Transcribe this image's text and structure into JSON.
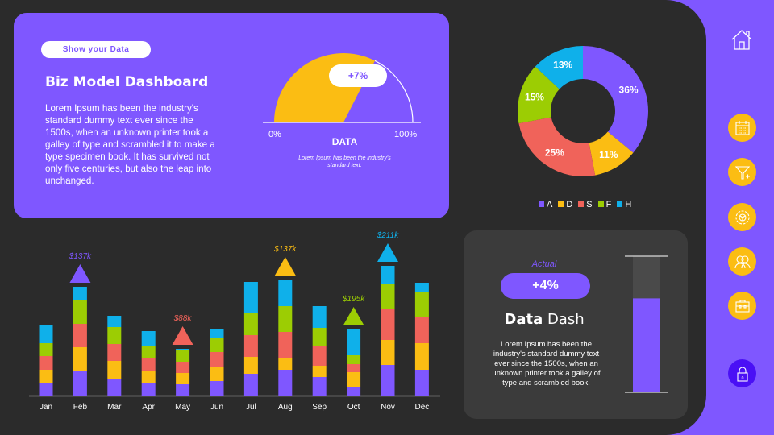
{
  "colors": {
    "purple": "#7f57ff",
    "yellow": "#fbbd13",
    "red": "#f0635a",
    "green": "#9ccd03",
    "blue": "#0fb0ea",
    "dark": "#2b2b2b",
    "lock": "#4a10f5"
  },
  "header": {
    "pill_label": "Show your  Data",
    "title": "Biz Model Dashboard",
    "paragraph": "Lorem Ipsum has been the industry's standard dummy text ever since the 1500s, when an unknown printer took a galley of type and scrambled it to make a type specimen book. It has survived not only five centuries, but also the leap into unchanged."
  },
  "gauge": {
    "value_percent": 65,
    "badge": "+7%",
    "min_label": "0%",
    "max_label": "100%",
    "title": "DATA",
    "subtitle": "Lorem Ipsum has been the industry's standard text."
  },
  "chart_data": [
    {
      "type": "pie",
      "variant": "donut",
      "labels": [
        "A",
        "D",
        "S",
        "F",
        "H"
      ],
      "values": [
        36,
        11,
        25,
        15,
        13
      ],
      "value_labels": [
        "36%",
        "11%",
        "25%",
        "15%",
        "13%"
      ],
      "colors": [
        "#7f57ff",
        "#fbbd13",
        "#f0635a",
        "#9ccd03",
        "#0fb0ea"
      ],
      "legend": "bottom"
    },
    {
      "type": "bar",
      "stacked": true,
      "categories": [
        "Jan",
        "Feb",
        "Mar",
        "Apr",
        "May",
        "Jun",
        "Jul",
        "Aug",
        "Sep",
        "Oct",
        "Nov",
        "Dec"
      ],
      "series": [
        {
          "color": "#7f57ff",
          "values": [
            16,
            30,
            21,
            15,
            14,
            18,
            27,
            32,
            23,
            11,
            38,
            32
          ]
        },
        {
          "color": "#fbbd13",
          "values": [
            16,
            30,
            22,
            16,
            14,
            18,
            21,
            15,
            14,
            18,
            31,
            33
          ]
        },
        {
          "color": "#f0635a",
          "values": [
            17,
            29,
            21,
            16,
            14,
            18,
            27,
            32,
            24,
            10,
            38,
            32
          ]
        },
        {
          "color": "#9ccd03",
          "values": [
            16,
            30,
            21,
            15,
            14,
            18,
            28,
            32,
            23,
            11,
            31,
            32
          ]
        },
        {
          "color": "#0fb0ea",
          "values": [
            22,
            16,
            14,
            18,
            2,
            11,
            38,
            33,
            27,
            32,
            23,
            11
          ]
        }
      ],
      "annotations": [
        {
          "category": "Feb",
          "label": "$137k",
          "color": "#7f57ff"
        },
        {
          "category": "May",
          "label": "$88k",
          "color": "#f0635a"
        },
        {
          "category": "Aug",
          "label": "$137k",
          "color": "#fbbd13"
        },
        {
          "category": "Oct",
          "label": "$195k",
          "color": "#9ccd03"
        },
        {
          "category": "Nov",
          "label": "$211k",
          "color": "#0fb0ea"
        }
      ],
      "grid": false
    }
  ],
  "panel": {
    "actual_label": "Actual",
    "badge": "+4%",
    "title_bold": "Data",
    "title_rest": " Dash",
    "paragraph": "Lorem Ipsum has been the industry's standard dummy text ever since the 1500s, when an unknown printer took a galley  of type and scrambled book.",
    "level_percent": 69
  },
  "sidebar": {
    "icons": [
      "home-icon",
      "calendar-icon",
      "filter-add-icon",
      "gear-icon",
      "users-icon",
      "briefcase-icon",
      "lock-icon"
    ],
    "lock_number": "0"
  }
}
